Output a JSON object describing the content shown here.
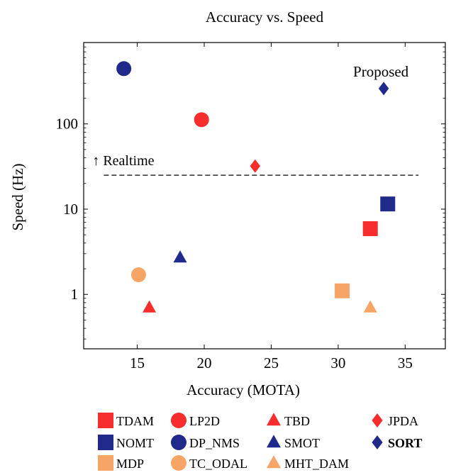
{
  "chart_data": {
    "type": "scatter",
    "title": "Accuracy vs. Speed",
    "xlabel": "Accuracy (MOTA)",
    "ylabel": "Speed (Hz)",
    "xlim": [
      11,
      38
    ],
    "ylim": [
      0.23,
      900
    ],
    "yscale": "log",
    "grid": false,
    "legend_position": "bottom",
    "xticks": [
      15,
      20,
      25,
      30,
      35
    ],
    "xtick_labels": [
      "15",
      "20",
      "25",
      "30",
      "35"
    ],
    "yticks": [
      1,
      10,
      100
    ],
    "ytick_labels": [
      "1",
      "10",
      "100"
    ],
    "colors": {
      "red": "#f72c2c",
      "blue": "#1f2a8a",
      "orange": "#f7a566"
    },
    "series": [
      {
        "name": "TDAM",
        "marker": "square",
        "color": "#f72c2c",
        "points": [
          {
            "x": 32.4,
            "y": 5.9
          }
        ]
      },
      {
        "name": "LP2D",
        "marker": "circle",
        "color": "#f72c2c",
        "points": [
          {
            "x": 19.8,
            "y": 112
          }
        ]
      },
      {
        "name": "TBD",
        "marker": "triangle",
        "color": "#f72c2c",
        "points": [
          {
            "x": 15.9,
            "y": 0.7
          }
        ]
      },
      {
        "name": "JPDA",
        "marker": "diamond",
        "color": "#f72c2c",
        "points": [
          {
            "x": 23.8,
            "y": 32
          }
        ]
      },
      {
        "name": "NOMT",
        "marker": "square",
        "color": "#1f2a8a",
        "points": [
          {
            "x": 33.7,
            "y": 11.5
          }
        ]
      },
      {
        "name": "DP_NMS",
        "marker": "circle",
        "color": "#1f2a8a",
        "points": [
          {
            "x": 14.0,
            "y": 444.8
          }
        ]
      },
      {
        "name": "SMOT",
        "marker": "triangle",
        "color": "#1f2a8a",
        "points": [
          {
            "x": 18.2,
            "y": 2.7
          }
        ]
      },
      {
        "name": "SORT",
        "marker": "diamond",
        "color": "#1f2a8a",
        "bold": true,
        "points": [
          {
            "x": 33.4,
            "y": 260
          }
        ]
      },
      {
        "name": "MDP",
        "marker": "square",
        "color": "#f7a566",
        "points": [
          {
            "x": 30.3,
            "y": 1.1
          }
        ]
      },
      {
        "name": "TC_ODAL",
        "marker": "circle",
        "color": "#f7a566",
        "points": [
          {
            "x": 15.1,
            "y": 1.7
          }
        ]
      },
      {
        "name": "MHT_DAM",
        "marker": "triangle",
        "color": "#f7a566",
        "points": [
          {
            "x": 32.4,
            "y": 0.7
          }
        ]
      }
    ],
    "reference_line": {
      "label": "↑ Realtime",
      "y": 25,
      "x_range": [
        12.5,
        36
      ],
      "style": "dashed"
    },
    "annotations": [
      {
        "text": "Proposed",
        "x": 33.4,
        "y": 260
      }
    ]
  }
}
